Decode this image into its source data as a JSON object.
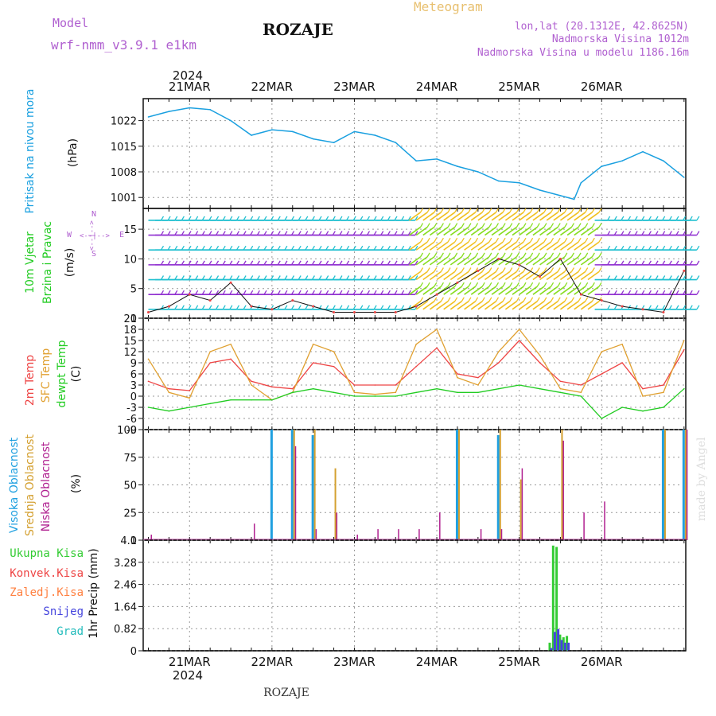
{
  "header": {
    "model_label": "Model",
    "model_name": "wrf-nmm_v3.9.1  e1km",
    "title": "ROZAJE",
    "meteogram_label": "Meteogram",
    "coords": "lon,lat (20.1312E, 42.8625N)",
    "elevation": "Nadmorska Visina 1012m",
    "model_elevation": "Nadmorska Visina u modelu 1186.16m",
    "footer_title": "ROZAJE",
    "credit": "made by Angel"
  },
  "colors": {
    "pressure": "#1aa0e0",
    "temp2m": "#ee4444",
    "sfc_temp": "#e0a030",
    "dewpt": "#22cc22",
    "high_cloud": "#20a0e0",
    "mid_cloud": "#d4a030",
    "low_cloud": "#b02090",
    "total_rain": "#33cc33",
    "conv_rain": "#ee4444",
    "freezing_rain": "#ff8040",
    "snow": "#4444dd",
    "graupel": "#22bbbb",
    "header_purple": "#b060d0",
    "header_orange": "#e8c070"
  },
  "time_axis": {
    "year": "2024",
    "days": [
      "21MAR",
      "22MAR",
      "23MAR",
      "24MAR",
      "25MAR",
      "26MAR"
    ]
  },
  "wind_legend": {
    "compass": [
      "W",
      "<--|-->",
      "E",
      "S",
      "N"
    ]
  },
  "chart_data": [
    {
      "type": "line",
      "panel": "pressure",
      "ylabel_1": "Pritisak na nivou mora",
      "ylabel_2": "(hPa)",
      "yticks": [
        1001,
        1008,
        1015,
        1022
      ],
      "ylim": [
        998,
        1028
      ],
      "x_unit": "hours from 21MAR 00UTC",
      "x": [
        -12,
        -6,
        0,
        6,
        12,
        18,
        24,
        30,
        36,
        42,
        48,
        54,
        60,
        66,
        72,
        78,
        84,
        90,
        96,
        102,
        108,
        112,
        114,
        120,
        126,
        132,
        138,
        144
      ],
      "series": [
        {
          "values": [
            1023,
            1024.5,
            1025.5,
            1025,
            1022,
            1018,
            1019.5,
            1019,
            1017,
            1016,
            1019,
            1018,
            1016,
            1011,
            1011.5,
            1009.5,
            1008,
            1005.5,
            1005,
            1003,
            1001.5,
            1000.5,
            1005,
            1009.5,
            1011,
            1013.5,
            1011,
            1006.5
          ]
        }
      ],
      "grid": true
    },
    {
      "type": "line",
      "panel": "wind",
      "ylabel_1": "10m Vjetar",
      "ylabel_2": "Brzina i Pravac",
      "ylabel_3": "(m/s)",
      "yticks": [
        0,
        5,
        10,
        15
      ],
      "ylim": [
        0,
        18.5
      ],
      "x": [
        -12,
        -6,
        0,
        6,
        12,
        18,
        24,
        30,
        36,
        42,
        48,
        54,
        60,
        66,
        72,
        78,
        84,
        90,
        96,
        102,
        108,
        114,
        120,
        126,
        132,
        138,
        144
      ],
      "series": [
        {
          "values": [
            1,
            2,
            4,
            3,
            6,
            2,
            1.5,
            3,
            2,
            1,
            1,
            1,
            1,
            2,
            4,
            6,
            8,
            10,
            9,
            7,
            10,
            4,
            3,
            2,
            1.5,
            1,
            8
          ]
        }
      ],
      "grid": true
    },
    {
      "type": "line",
      "panel": "temperature",
      "ylabel_1": "2m Temp",
      "ylabel_2": "SFC Temp",
      "ylabel_3": "dewpt Temp",
      "ylabel_4": "(C)",
      "yticks": [
        -9,
        -6,
        -3,
        0,
        3,
        6,
        9,
        12,
        15,
        18,
        21
      ],
      "ylim": [
        -9,
        21
      ],
      "x": [
        -12,
        -6,
        0,
        6,
        12,
        18,
        24,
        30,
        36,
        42,
        48,
        54,
        60,
        66,
        72,
        78,
        84,
        90,
        96,
        102,
        108,
        114,
        120,
        126,
        132,
        138,
        144
      ],
      "series": [
        {
          "name": "2m Temp",
          "values": [
            4,
            2,
            1.5,
            9,
            10,
            4,
            2.5,
            2,
            9,
            8,
            3,
            3,
            3,
            8,
            13,
            6,
            5,
            9,
            15,
            9,
            4,
            3,
            6,
            9,
            2,
            3,
            12.5
          ]
        },
        {
          "name": "SFC Temp",
          "values": [
            10,
            1,
            -0.5,
            12,
            14,
            3,
            -1,
            1,
            14,
            12,
            1,
            0.5,
            1,
            14,
            18,
            5,
            3,
            12,
            18,
            11,
            2,
            1,
            12,
            14,
            0,
            1,
            15
          ]
        },
        {
          "name": "dewpt Temp",
          "values": [
            -3,
            -4,
            -3,
            -2,
            -1,
            -1,
            -1,
            1,
            2,
            1,
            0,
            0,
            0,
            1,
            2,
            1,
            1,
            2,
            3,
            2,
            1,
            0,
            -6,
            -3,
            -4,
            -3,
            2
          ]
        }
      ],
      "grid": true
    },
    {
      "type": "bar",
      "panel": "cloud",
      "ylabel_1": "Visoka Oblacnost",
      "ylabel_2": "Srednja Oblacnost",
      "ylabel_3": "Niska Oblacnost",
      "ylabel_4": "(%)",
      "yticks": [
        0,
        25,
        50,
        75,
        100
      ],
      "ylim": [
        0,
        100
      ],
      "x": [
        -12,
        -6,
        0,
        6,
        12,
        18,
        24,
        30,
        36,
        42,
        48,
        54,
        60,
        66,
        72,
        78,
        84,
        90,
        96,
        102,
        108,
        114,
        120,
        126,
        132,
        138,
        144
      ],
      "series": [
        {
          "name": "Visoka Oblacnost",
          "values": [
            0,
            0,
            0,
            0,
            0,
            0,
            100,
            100,
            95,
            0,
            0,
            0,
            0,
            0,
            0,
            100,
            0,
            95,
            0,
            0,
            0,
            0,
            0,
            0,
            0,
            100,
            100
          ]
        },
        {
          "name": "Srednja Oblacnost",
          "values": [
            0,
            0,
            0,
            0,
            0,
            0,
            0,
            100,
            100,
            65,
            0,
            0,
            0,
            0,
            0,
            100,
            0,
            100,
            55,
            0,
            100,
            0,
            0,
            0,
            0,
            100,
            100
          ]
        },
        {
          "name": "Niska Oblacnost",
          "values": [
            5,
            0,
            0,
            0,
            0,
            15,
            0,
            85,
            10,
            25,
            5,
            10,
            10,
            10,
            25,
            0,
            10,
            10,
            65,
            0,
            90,
            25,
            35,
            0,
            0,
            0,
            100
          ]
        }
      ],
      "grid": true
    },
    {
      "type": "bar",
      "panel": "precip",
      "ylabel_1": "1hr Precip (mm)",
      "legend": [
        "Ukupna Kisa",
        "Konvek.Kisa",
        "Zaledj.Kisa",
        "Snijeg",
        "Grad"
      ],
      "yticks": [
        0,
        0.82,
        1.64,
        2.46,
        3.28,
        4.1
      ],
      "ylim": [
        0,
        4.1
      ],
      "x": [
        105,
        106,
        107,
        108,
        109,
        110,
        111
      ],
      "series": [
        {
          "name": "Ukupna Kisa",
          "values": [
            0.3,
            3.9,
            3.85,
            0.6,
            0.5,
            0.55,
            0
          ]
        },
        {
          "name": "Snijeg",
          "values": [
            0.1,
            0.7,
            0.8,
            0.4,
            0.3,
            0.3,
            0
          ]
        }
      ],
      "grid": true
    }
  ]
}
